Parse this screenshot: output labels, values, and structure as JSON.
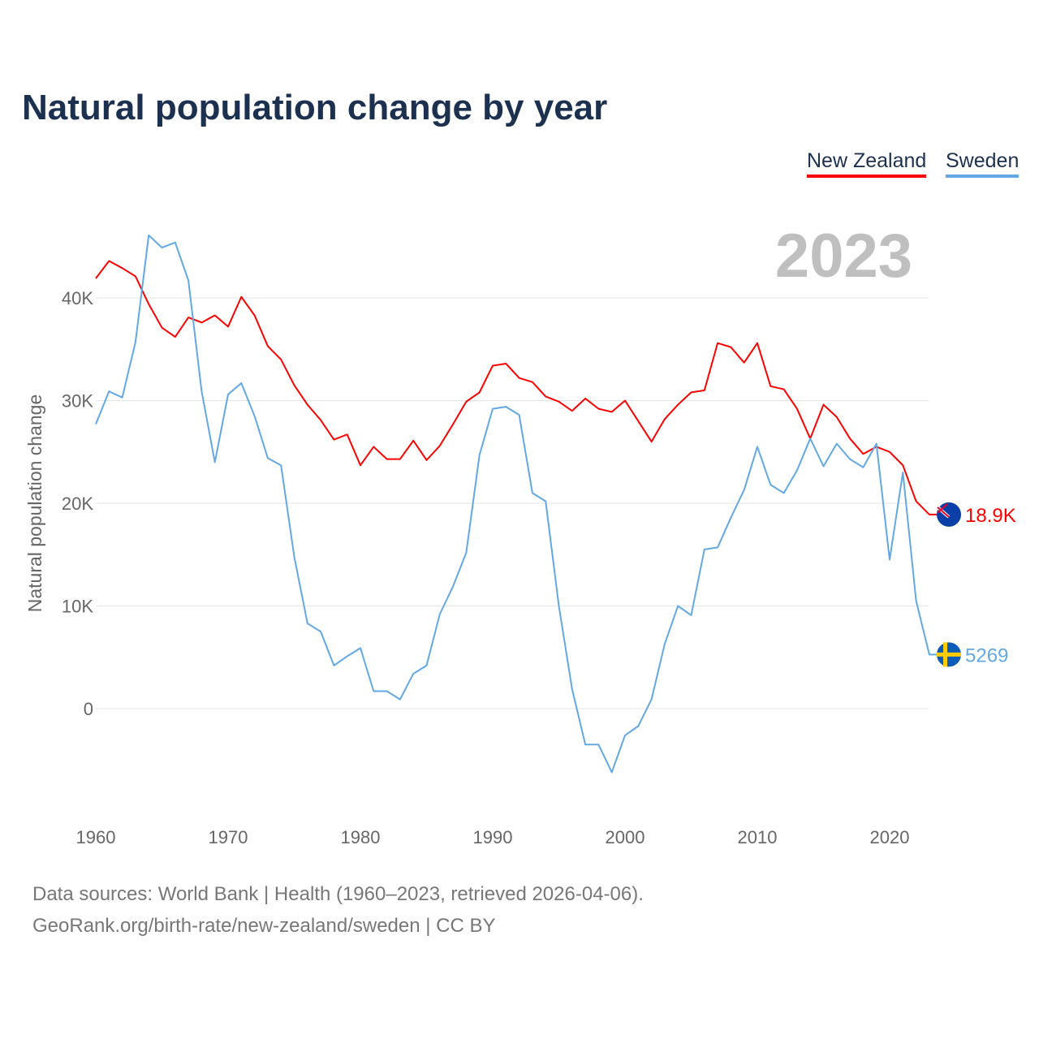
{
  "chart_data": {
    "type": "line",
    "title": "Natural population change by year",
    "xlabel": "",
    "ylabel": "Natural population change",
    "current_year": "2023",
    "xlim": [
      1960,
      2023
    ],
    "ylim": [
      -10000,
      46000
    ],
    "xticks": [
      1960,
      1970,
      1980,
      1990,
      2000,
      2010,
      2020
    ],
    "yticks": [
      0,
      10000,
      20000,
      30000,
      40000
    ],
    "ytick_labels": [
      "0",
      "10K",
      "20K",
      "30K",
      "40K"
    ],
    "grid": true,
    "legend_position": "top-right",
    "x": [
      1960,
      1961,
      1962,
      1963,
      1964,
      1965,
      1966,
      1967,
      1968,
      1969,
      1970,
      1971,
      1972,
      1973,
      1974,
      1975,
      1976,
      1977,
      1978,
      1979,
      1980,
      1981,
      1982,
      1983,
      1984,
      1985,
      1986,
      1987,
      1988,
      1989,
      1990,
      1991,
      1992,
      1993,
      1994,
      1995,
      1996,
      1997,
      1998,
      1999,
      2000,
      2001,
      2002,
      2003,
      2004,
      2005,
      2006,
      2007,
      2008,
      2009,
      2010,
      2011,
      2012,
      2013,
      2014,
      2015,
      2016,
      2017,
      2018,
      2019,
      2020,
      2021,
      2022,
      2023
    ],
    "series": [
      {
        "name": "New Zealand",
        "color": "#ff0000",
        "end_label": "18.9K",
        "values": [
          41900,
          43600,
          42900,
          42100,
          39400,
          37100,
          36200,
          38100,
          37600,
          38300,
          37200,
          40100,
          38300,
          35300,
          34000,
          31500,
          29600,
          28100,
          26200,
          26700,
          23700,
          25500,
          24300,
          24300,
          26100,
          24200,
          25600,
          27700,
          29900,
          30800,
          33400,
          33600,
          32200,
          31800,
          30400,
          29900,
          29000,
          30200,
          29200,
          28900,
          30000,
          28000,
          26000,
          28200,
          29600,
          30800,
          31000,
          35600,
          35200,
          33700,
          35600,
          31400,
          31100,
          29200,
          26300,
          29600,
          28400,
          26300,
          24800,
          25500,
          25000,
          23700,
          20200,
          18900
        ]
      },
      {
        "name": "Sweden",
        "color": "#62a8e5",
        "end_label": "5269",
        "values": [
          27700,
          30900,
          30300,
          35700,
          46100,
          44900,
          45400,
          41700,
          30900,
          24000,
          30600,
          31700,
          28500,
          24400,
          23700,
          14800,
          8300,
          7500,
          4200,
          5100,
          5900,
          1700,
          1700,
          900,
          3400,
          4200,
          9200,
          11900,
          15200,
          24700,
          29200,
          29400,
          28600,
          21000,
          20200,
          10000,
          1900,
          -3500,
          -3500,
          -6200,
          -2600,
          -1700,
          900,
          6300,
          10000,
          9100,
          15500,
          15700,
          18600,
          21300,
          25500,
          21800,
          21000,
          23200,
          26300,
          23600,
          25800,
          24300,
          23500,
          25800,
          14500,
          23000,
          10500,
          5269
        ]
      }
    ]
  },
  "footer": {
    "line1": "Data sources: World Bank | Health (1960–2023, retrieved 2026-04-06).",
    "line2": "GeoRank.org/birth-rate/new-zealand/sweden | CC BY"
  }
}
